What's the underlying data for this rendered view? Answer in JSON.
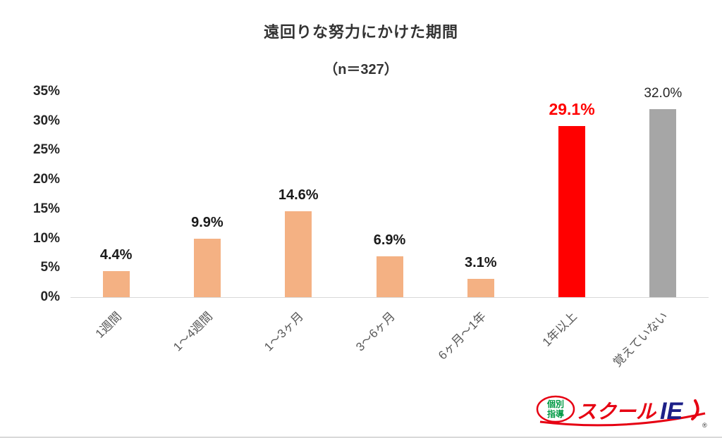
{
  "title": "遠回りな努力にかけた期間",
  "subtitle": "（n＝327）",
  "chart_data": {
    "type": "bar",
    "title": "遠回りな努力にかけた期間",
    "subtitle": "（n＝327）",
    "categories": [
      "1週間",
      "1～4週間",
      "1～3ヶ月",
      "3～6ヶ月",
      "6ヶ月～1年",
      "1年以上",
      "覚えていない"
    ],
    "values": [
      4.4,
      9.9,
      14.6,
      6.9,
      3.1,
      29.1,
      32.0
    ],
    "value_labels": [
      "4.4%",
      "9.9%",
      "14.6%",
      "6.9%",
      "3.1%",
      "29.1%",
      "32.0%"
    ],
    "bar_colors": [
      "#F4B183",
      "#F4B183",
      "#F4B183",
      "#F4B183",
      "#F4B183",
      "#FF0000",
      "#A6A6A6"
    ],
    "label_colors": [
      "#1a1a1a",
      "#1a1a1a",
      "#1a1a1a",
      "#1a1a1a",
      "#1a1a1a",
      "#FF0000",
      "#262626"
    ],
    "label_sizes": [
      20,
      20,
      20,
      20,
      20,
      23,
      19
    ],
    "label_weights": [
      700,
      700,
      700,
      700,
      700,
      700,
      400
    ],
    "y_tick_labels": [
      "0%",
      "5%",
      "10%",
      "15%",
      "20%",
      "25%",
      "30%",
      "35%"
    ],
    "y_tick_values": [
      0,
      5,
      10,
      15,
      20,
      25,
      30,
      35
    ],
    "ylim": [
      0,
      35
    ],
    "xlabel": "",
    "ylabel": "",
    "grid": false,
    "legend": "none"
  },
  "logo": {
    "badge_line1": "個別",
    "badge_line2": "指導",
    "brand_red": "スクール",
    "brand_blue": "IE",
    "registered_mark": "®",
    "colors": {
      "red": "#E60012",
      "blue": "#1D2088",
      "green": "#009944"
    }
  }
}
